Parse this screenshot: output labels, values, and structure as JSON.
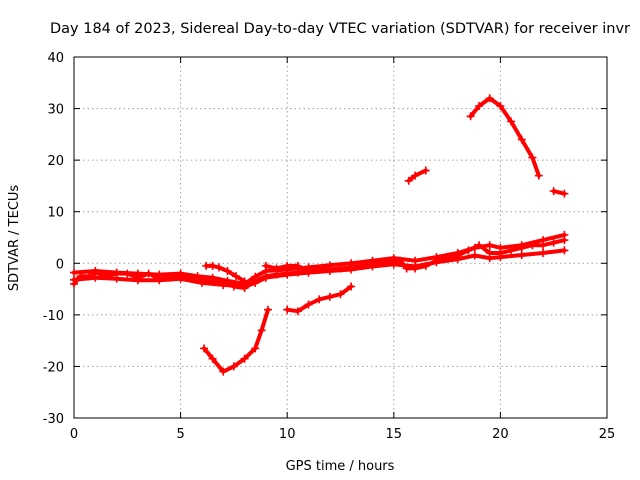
{
  "chart_data": {
    "type": "scatter",
    "title": "Day 184 of 2023, Sidereal Day-to-day VTEC variation (SDTVAR) for receiver invr",
    "xlabel": "GPS time / hours",
    "ylabel": "SDTVAR / TECUs",
    "xlim": [
      0,
      25
    ],
    "ylim": [
      -30,
      40
    ],
    "xticks": [
      0,
      5,
      10,
      15,
      20,
      25
    ],
    "yticks": [
      -30,
      -20,
      -10,
      0,
      10,
      20,
      30,
      40
    ],
    "grid": true,
    "marker": "plus",
    "color": "#ff0000",
    "series": [
      {
        "name": "main-band",
        "points": [
          [
            0,
            -4
          ],
          [
            0.3,
            -2.5
          ],
          [
            0.7,
            -2.5
          ],
          [
            1,
            -1.8
          ],
          [
            1.5,
            -2.5
          ],
          [
            2,
            -2
          ],
          [
            2.5,
            -2
          ],
          [
            3,
            -2.8
          ],
          [
            3.5,
            -2
          ],
          [
            4,
            -3
          ],
          [
            4.5,
            -2.8
          ],
          [
            5,
            -2.5
          ],
          [
            5.5,
            -2.8
          ],
          [
            6,
            -3.2
          ],
          [
            6.5,
            -3.3
          ],
          [
            7,
            -3.8
          ],
          [
            7.5,
            -4.5
          ],
          [
            8,
            -4.8
          ],
          [
            8.5,
            -3.5
          ],
          [
            9,
            -2.5
          ],
          [
            9.5,
            -2.2
          ],
          [
            10,
            -2
          ],
          [
            10.5,
            -1.8
          ],
          [
            11,
            -1.5
          ],
          [
            11.5,
            -1.2
          ],
          [
            12,
            -1.2
          ],
          [
            12.5,
            -1
          ],
          [
            13,
            -0.8
          ],
          [
            13.5,
            -0.5
          ],
          [
            14,
            0
          ],
          [
            14.5,
            0.2
          ],
          [
            15,
            0.5
          ],
          [
            15.3,
            0.5
          ],
          [
            15.6,
            -1
          ],
          [
            16,
            -1
          ],
          [
            16.5,
            -0.5
          ],
          [
            17,
            0.5
          ],
          [
            17.5,
            1
          ],
          [
            18,
            1.5
          ],
          [
            18.5,
            2.5
          ],
          [
            19,
            3.5
          ],
          [
            19.5,
            2
          ],
          [
            20,
            2
          ],
          [
            20.5,
            2.5
          ],
          [
            21,
            3
          ],
          [
            21.5,
            3.5
          ],
          [
            22,
            3.5
          ],
          [
            22.5,
            4
          ],
          [
            23,
            4.5
          ]
        ]
      },
      {
        "name": "lower-band",
        "points": [
          [
            0,
            -3.2
          ],
          [
            1,
            -2.8
          ],
          [
            2,
            -3
          ],
          [
            3,
            -3.3
          ],
          [
            4,
            -3.3
          ],
          [
            5,
            -3
          ],
          [
            6,
            -3.8
          ],
          [
            7,
            -4.2
          ],
          [
            8,
            -4.5
          ],
          [
            8.5,
            -3.8
          ],
          [
            9,
            -2.8
          ],
          [
            10,
            -2.2
          ],
          [
            11,
            -1.8
          ],
          [
            12,
            -1.5
          ],
          [
            13,
            -1.2
          ],
          [
            14,
            -0.6
          ],
          [
            15,
            -0.2
          ],
          [
            16,
            -0.6
          ],
          [
            17,
            0.2
          ],
          [
            18,
            0.8
          ],
          [
            18.8,
            1.5
          ],
          [
            19.5,
            1
          ],
          [
            20,
            1.2
          ],
          [
            21,
            1.6
          ],
          [
            22,
            2
          ],
          [
            23,
            2.5
          ]
        ]
      },
      {
        "name": "upper-band",
        "points": [
          [
            0,
            -1.8
          ],
          [
            1,
            -1.5
          ],
          [
            2,
            -1.8
          ],
          [
            3,
            -2
          ],
          [
            4,
            -2.2
          ],
          [
            5,
            -2
          ],
          [
            5.8,
            -2.5
          ],
          [
            6.5,
            -2.8
          ],
          [
            7.2,
            -3.4
          ],
          [
            8,
            -4
          ],
          [
            8.5,
            -2.6
          ],
          [
            9,
            -1.5
          ],
          [
            10,
            -1.2
          ],
          [
            11,
            -0.8
          ],
          [
            12,
            -0.4
          ],
          [
            13,
            0
          ],
          [
            14,
            0.5
          ],
          [
            15,
            1
          ],
          [
            16,
            0.5
          ],
          [
            17,
            1.2
          ],
          [
            18,
            2
          ],
          [
            18.8,
            3
          ],
          [
            19.5,
            3.5
          ],
          [
            20,
            3
          ],
          [
            21,
            3.5
          ],
          [
            22,
            4.5
          ],
          [
            23,
            5.5
          ]
        ]
      },
      {
        "name": "loop-segment",
        "points": [
          [
            6.2,
            -0.5
          ],
          [
            6.5,
            -0.5
          ],
          [
            6.8,
            -0.8
          ],
          [
            7.2,
            -1.5
          ],
          [
            7.6,
            -2.5
          ],
          [
            8,
            -3.5
          ]
        ]
      },
      {
        "name": "rising-segment",
        "points": [
          [
            9,
            -0.5
          ],
          [
            9.5,
            -1
          ],
          [
            10,
            -0.5
          ],
          [
            10.5,
            -0.5
          ]
        ]
      },
      {
        "name": "dip-arc",
        "points": [
          [
            6.1,
            -16.5
          ],
          [
            6.5,
            -18.5
          ],
          [
            7,
            -21
          ],
          [
            7.5,
            -20
          ],
          [
            8,
            -18.5
          ],
          [
            8.5,
            -16.5
          ],
          [
            8.8,
            -13
          ],
          [
            9.1,
            -9
          ]
        ]
      },
      {
        "name": "mid-arc",
        "points": [
          [
            10,
            -9
          ],
          [
            10.5,
            -9.3
          ],
          [
            11,
            -8
          ],
          [
            11.5,
            -7
          ],
          [
            12,
            -6.5
          ],
          [
            12.5,
            -6
          ],
          [
            13,
            -4.5
          ]
        ]
      },
      {
        "name": "short-segment",
        "points": [
          [
            15.7,
            16
          ],
          [
            16,
            17
          ],
          [
            16.5,
            18
          ]
        ]
      },
      {
        "name": "peak-arc",
        "points": [
          [
            18.6,
            28.5
          ],
          [
            19,
            30.5
          ],
          [
            19.5,
            32
          ],
          [
            20,
            30.5
          ],
          [
            20.5,
            27.5
          ],
          [
            21,
            24
          ],
          [
            21.5,
            20.5
          ],
          [
            21.8,
            17
          ]
        ]
      },
      {
        "name": "end-segment",
        "points": [
          [
            22.5,
            14
          ],
          [
            23,
            13.5
          ]
        ]
      }
    ]
  }
}
